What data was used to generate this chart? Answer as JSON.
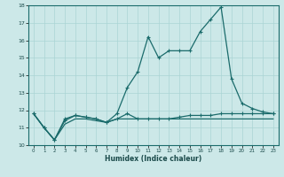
{
  "xlabel": "Humidex (Indice chaleur)",
  "xlim": [
    -0.5,
    23.5
  ],
  "ylim": [
    10,
    18
  ],
  "xticks": [
    0,
    1,
    2,
    3,
    4,
    5,
    6,
    7,
    8,
    9,
    10,
    11,
    12,
    13,
    14,
    15,
    16,
    17,
    18,
    19,
    20,
    21,
    22,
    23
  ],
  "yticks": [
    10,
    11,
    12,
    13,
    14,
    15,
    16,
    17,
    18
  ],
  "bg_color": "#cce8e8",
  "grid_color": "#aad4d4",
  "line_color": "#1a6b6b",
  "line1_y": [
    11.8,
    11.0,
    10.3,
    11.5,
    11.7,
    11.6,
    11.5,
    11.3,
    11.8,
    13.3,
    14.2,
    16.2,
    15.0,
    15.4,
    15.4,
    15.4,
    16.5,
    17.2,
    17.9,
    13.8,
    12.4,
    12.1,
    11.9,
    11.8
  ],
  "line2_y": [
    11.8,
    11.0,
    10.3,
    11.4,
    11.7,
    11.6,
    11.5,
    11.3,
    11.5,
    11.8,
    11.5,
    11.5,
    11.5,
    11.5,
    11.6,
    11.7,
    11.7,
    11.7,
    11.8,
    11.8,
    11.8,
    11.8,
    11.8,
    11.8
  ],
  "line3_y": [
    11.8,
    11.0,
    10.3,
    11.2,
    11.5,
    11.5,
    11.4,
    11.3,
    11.5,
    11.5,
    11.5,
    11.5,
    11.5,
    11.5,
    11.5,
    11.5,
    11.5,
    11.5,
    11.5,
    11.5,
    11.5,
    11.5,
    11.5,
    11.5
  ]
}
